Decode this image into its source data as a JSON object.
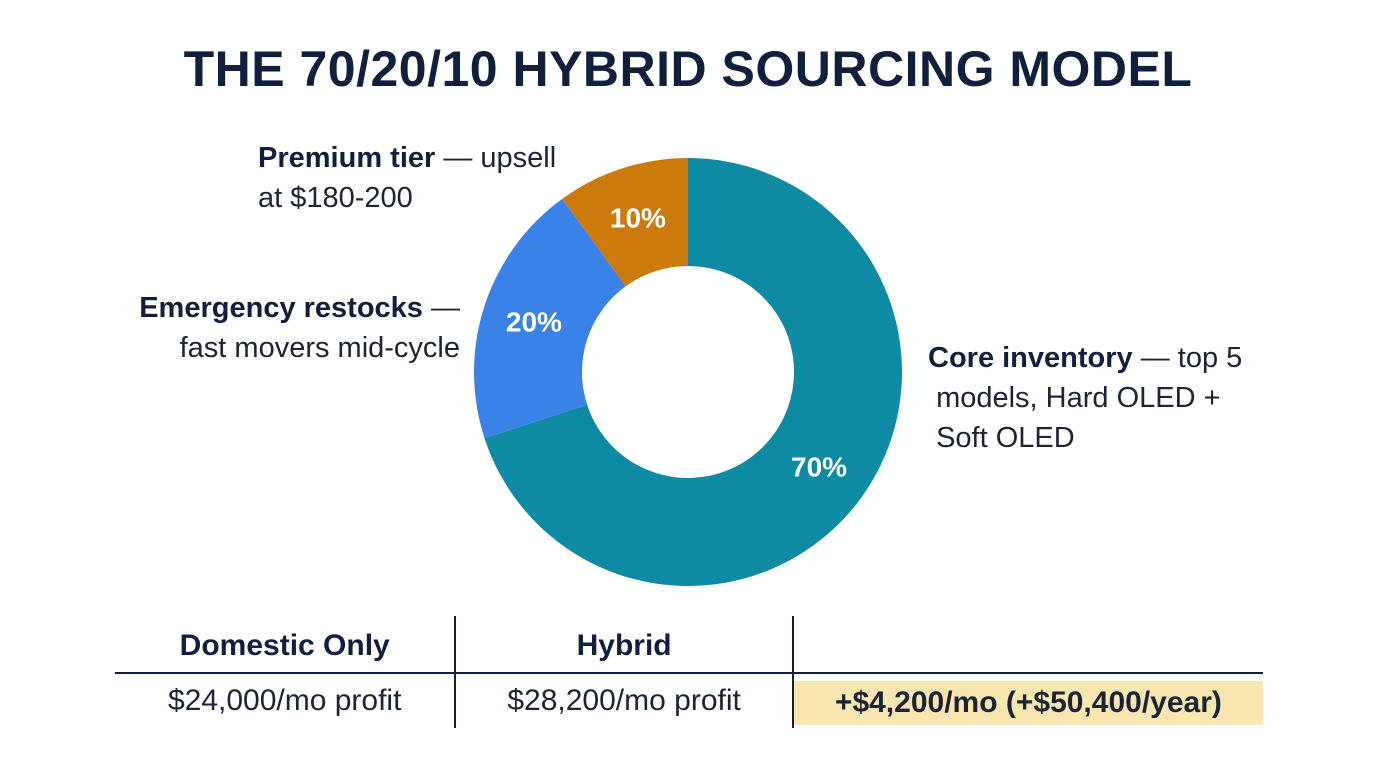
{
  "title": "THE 70/20/10 HYBRID SOURCING MODEL",
  "chart_data": {
    "type": "pie",
    "donut": true,
    "slices": [
      {
        "label": "Core inventory",
        "value": 70,
        "text": "70%",
        "color": "#0e8aa3"
      },
      {
        "label": "Emergency restocks",
        "value": 20,
        "text": "20%",
        "color": "#3b82e8"
      },
      {
        "label": "Premium tier",
        "value": 10,
        "text": "10%",
        "color": "#cc7a0c"
      }
    ]
  },
  "callouts": {
    "premium": {
      "bold": "Premium tier",
      "rest1": " — upsell",
      "rest2": "at $180-200"
    },
    "emergency": {
      "bold": "Emergency restocks",
      "rest1": " —",
      "rest2": "fast movers mid-cycle"
    },
    "core": {
      "bold": "Core inventory",
      "rest1": " — top 5",
      "rest2": "models, Hard OLED +",
      "rest3": "Soft OLED"
    }
  },
  "comparison": {
    "headers": [
      "Domestic Only",
      "Hybrid",
      ""
    ],
    "values": [
      "$24,000/mo profit",
      "$28,200/mo profit",
      "+$4,200/mo (+$50,400/year)"
    ]
  }
}
